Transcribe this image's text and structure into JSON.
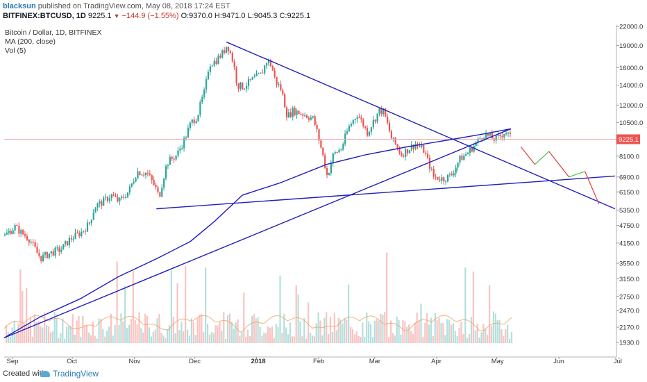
{
  "header": {
    "author": "blacksun",
    "published": "published on TradingView.com, May 08, 2018 17:24 EST",
    "symbol": "BITFINEX:BTCUSD, 1D",
    "last": "9225.1",
    "change": "−144.9 (−1.55%)",
    "ohlc": "O:9370.0 H:9471.0 L:9045.3 C:9225.1"
  },
  "legend": {
    "title": "Bitcoin / Dollar, 1D, BITFINEX",
    "ma": "MA (200, close)",
    "vol": "Vol (5)"
  },
  "footer": {
    "created": "Created with",
    "brand": "TradingView"
  },
  "colors": {
    "up": "#26a69a",
    "down": "#ef5350",
    "line": "#1f1fbf",
    "price_line": "#f4a6a6",
    "vol_ma": "#f0a060"
  },
  "chart_data": {
    "type": "candlestick",
    "price_axis_labels": [
      "22000.0",
      "19000.0",
      "16000.0",
      "14000.0",
      "12000.0",
      "10500.0",
      "9225.1",
      "8100.0",
      "6900.0",
      "6150.0",
      "5350.0",
      "4750.0",
      "4150.0",
      "3550.0",
      "3150.0",
      "2750.0",
      "2470.0",
      "2170.0",
      "1930.0"
    ],
    "last_price": 9225.1,
    "time_axis_labels": [
      "Sep",
      "Oct",
      "Nov",
      "Dec",
      "2018",
      "Feb",
      "Mar",
      "Apr",
      "May",
      "Jun",
      "Jul"
    ],
    "ohlc_close_path": [
      [
        "2017-08-28",
        4390
      ],
      [
        "2017-09-02",
        4700
      ],
      [
        "2017-09-05",
        4500
      ],
      [
        "2017-09-09",
        4300
      ],
      [
        "2017-09-13",
        3850
      ],
      [
        "2017-09-15",
        3700
      ],
      [
        "2017-09-20",
        3850
      ],
      [
        "2017-09-25",
        3950
      ],
      [
        "2017-09-30",
        4300
      ],
      [
        "2017-10-05",
        4500
      ],
      [
        "2017-10-09",
        4800
      ],
      [
        "2017-10-12",
        5500
      ],
      [
        "2017-10-16",
        5700
      ],
      [
        "2017-10-20",
        6000
      ],
      [
        "2017-10-24",
        5700
      ],
      [
        "2017-10-29",
        6200
      ],
      [
        "2017-11-02",
        7200
      ],
      [
        "2017-11-07",
        7100
      ],
      [
        "2017-11-11",
        6400
      ],
      [
        "2017-11-13",
        5900
      ],
      [
        "2017-11-17",
        7700
      ],
      [
        "2017-11-22",
        8200
      ],
      [
        "2017-11-26",
        9300
      ],
      [
        "2017-11-29",
        10500
      ],
      [
        "2017-12-02",
        11000
      ],
      [
        "2017-12-06",
        13500
      ],
      [
        "2017-12-08",
        16500
      ],
      [
        "2017-12-11",
        16800
      ],
      [
        "2017-12-15",
        18000
      ],
      [
        "2017-12-17",
        19200
      ],
      [
        "2017-12-20",
        16700
      ],
      [
        "2017-12-22",
        14000
      ],
      [
        "2017-12-25",
        13800
      ],
      [
        "2017-12-29",
        14500
      ],
      [
        "2018-01-03",
        15200
      ],
      [
        "2018-01-06",
        17000
      ],
      [
        "2018-01-08",
        16300
      ],
      [
        "2018-01-10",
        14500
      ],
      [
        "2018-01-13",
        13500
      ],
      [
        "2018-01-16",
        11000
      ],
      [
        "2018-01-19",
        11500
      ],
      [
        "2018-01-24",
        11200
      ],
      [
        "2018-01-29",
        10800
      ],
      [
        "2018-02-01",
        9100
      ],
      [
        "2018-02-05",
        6900
      ],
      [
        "2018-02-08",
        8200
      ],
      [
        "2018-02-12",
        8600
      ],
      [
        "2018-02-16",
        10200
      ],
      [
        "2018-02-20",
        11200
      ],
      [
        "2018-02-25",
        9700
      ],
      [
        "2018-03-03",
        11500
      ],
      [
        "2018-03-05",
        11400
      ],
      [
        "2018-03-09",
        9300
      ],
      [
        "2018-03-14",
        8200
      ],
      [
        "2018-03-17",
        8500
      ],
      [
        "2018-03-21",
        8900
      ],
      [
        "2018-03-25",
        8500
      ],
      [
        "2018-03-30",
        6900
      ],
      [
        "2018-04-04",
        6800
      ],
      [
        "2018-04-08",
        7000
      ],
      [
        "2018-04-12",
        7900
      ],
      [
        "2018-04-16",
        8300
      ],
      [
        "2018-04-20",
        8900
      ],
      [
        "2018-04-24",
        9600
      ],
      [
        "2018-04-30",
        9200
      ],
      [
        "2018-05-05",
        9800
      ],
      [
        "2018-05-08",
        9225
      ]
    ],
    "ma200_path": [
      [
        "2017-08-28",
        2000
      ],
      [
        "2017-09-15",
        2350
      ],
      [
        "2017-10-05",
        2700
      ],
      [
        "2017-10-24",
        3200
      ],
      [
        "2017-11-13",
        3700
      ],
      [
        "2017-11-29",
        4200
      ],
      [
        "2017-12-11",
        4900
      ],
      [
        "2017-12-25",
        6000
      ],
      [
        "2018-01-13",
        6600
      ],
      [
        "2018-02-05",
        7600
      ],
      [
        "2018-02-25",
        8200
      ],
      [
        "2018-03-17",
        8700
      ],
      [
        "2018-04-08",
        9200
      ],
      [
        "2018-04-24",
        9600
      ],
      [
        "2018-05-08",
        10000
      ]
    ],
    "trendlines": [
      {
        "from": [
          "2017-12-17",
          19500
        ],
        "to": [
          "2018-06-29",
          5400
        ]
      },
      {
        "from": [
          "2017-11-12",
          5400
        ],
        "to": [
          "2018-06-29",
          6950
        ]
      },
      {
        "from": [
          "2017-08-28",
          2000
        ],
        "to": [
          "2018-05-08",
          10000
        ]
      }
    ],
    "projections": [
      {
        "color": "red",
        "from": [
          "2018-05-13",
          8700
        ],
        "to": [
          "2018-05-20",
          7600
        ]
      },
      {
        "color": "green",
        "from": [
          "2018-05-20",
          7600
        ],
        "to": [
          "2018-05-27",
          8400
        ]
      },
      {
        "color": "red",
        "from": [
          "2018-05-27",
          8400
        ],
        "to": [
          "2018-06-06",
          6900
        ]
      },
      {
        "color": "green",
        "from": [
          "2018-06-06",
          6900
        ],
        "to": [
          "2018-06-14",
          7200
        ]
      },
      {
        "color": "red",
        "from": [
          "2018-06-14",
          7200
        ],
        "to": [
          "2018-06-21",
          5600
        ]
      }
    ]
  }
}
